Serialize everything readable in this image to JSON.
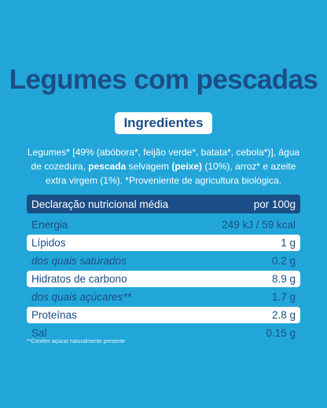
{
  "title": "Legumes com pescadas",
  "section_label": "Ingredientes",
  "ingredients": [
    "Legumes* [49% (abóbora*, feijão verde*, batata*, cebola*)], água de cozedura,",
    "pescada",
    "selvagem",
    "(peixe)",
    "(10%), arroz* e azeite extra virgem (1%). *Proveniente de agricultura biológica."
  ],
  "table": {
    "header": [
      "Declaração nutricional média",
      "por 100g"
    ],
    "rows": [
      [
        "Energia",
        "249 kJ / 59 kcal"
      ],
      [
        "Lípidos",
        "1 g"
      ],
      [
        "dos quais saturados",
        "0.2 g"
      ],
      [
        "Hidratos de carbono",
        "8.9 g"
      ],
      [
        "dos quais açúcares**",
        "1.7 g"
      ],
      [
        "Proteínas",
        "2.8 g"
      ],
      [
        "Sal",
        "0.15 g"
      ]
    ]
  },
  "footnote": "**Contém açúcar naturalmente presente"
}
